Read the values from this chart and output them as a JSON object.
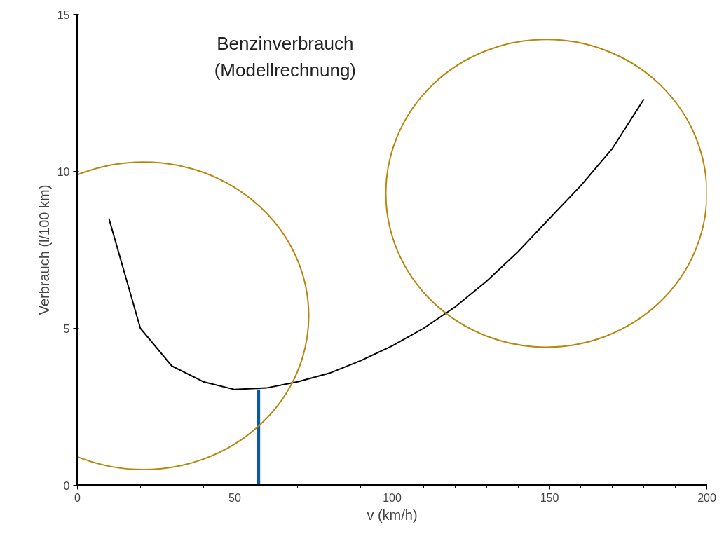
{
  "chart_data": {
    "type": "line",
    "title": "Benzinverbrauch\n(Modellrechnung)",
    "xlabel": "v (km/h)",
    "ylabel": "Verbrauch (l/100 km)",
    "x": [
      10,
      20,
      30,
      40,
      50,
      60,
      70,
      80,
      90,
      100,
      110,
      120,
      130,
      140,
      150,
      160,
      170,
      180
    ],
    "series": [
      {
        "color": "#000000",
        "values": [
          8.5,
          5.0,
          3.8,
          3.3,
          3.05,
          3.1,
          3.3,
          3.57,
          3.97,
          4.44,
          5.0,
          5.68,
          6.5,
          7.44,
          8.5,
          9.55,
          10.73,
          12.3
        ]
      }
    ],
    "xlim": [
      0,
      200
    ],
    "ylim": [
      0,
      15
    ],
    "xticks": [
      0,
      50,
      100,
      150,
      200
    ],
    "yticks": [
      0,
      5,
      10,
      15
    ],
    "ref_lines": [
      {
        "axis": "x",
        "value": 57.5,
        "color": "#0b5aa8"
      }
    ],
    "grid": false,
    "marker": "none",
    "line_style": "solid"
  }
}
